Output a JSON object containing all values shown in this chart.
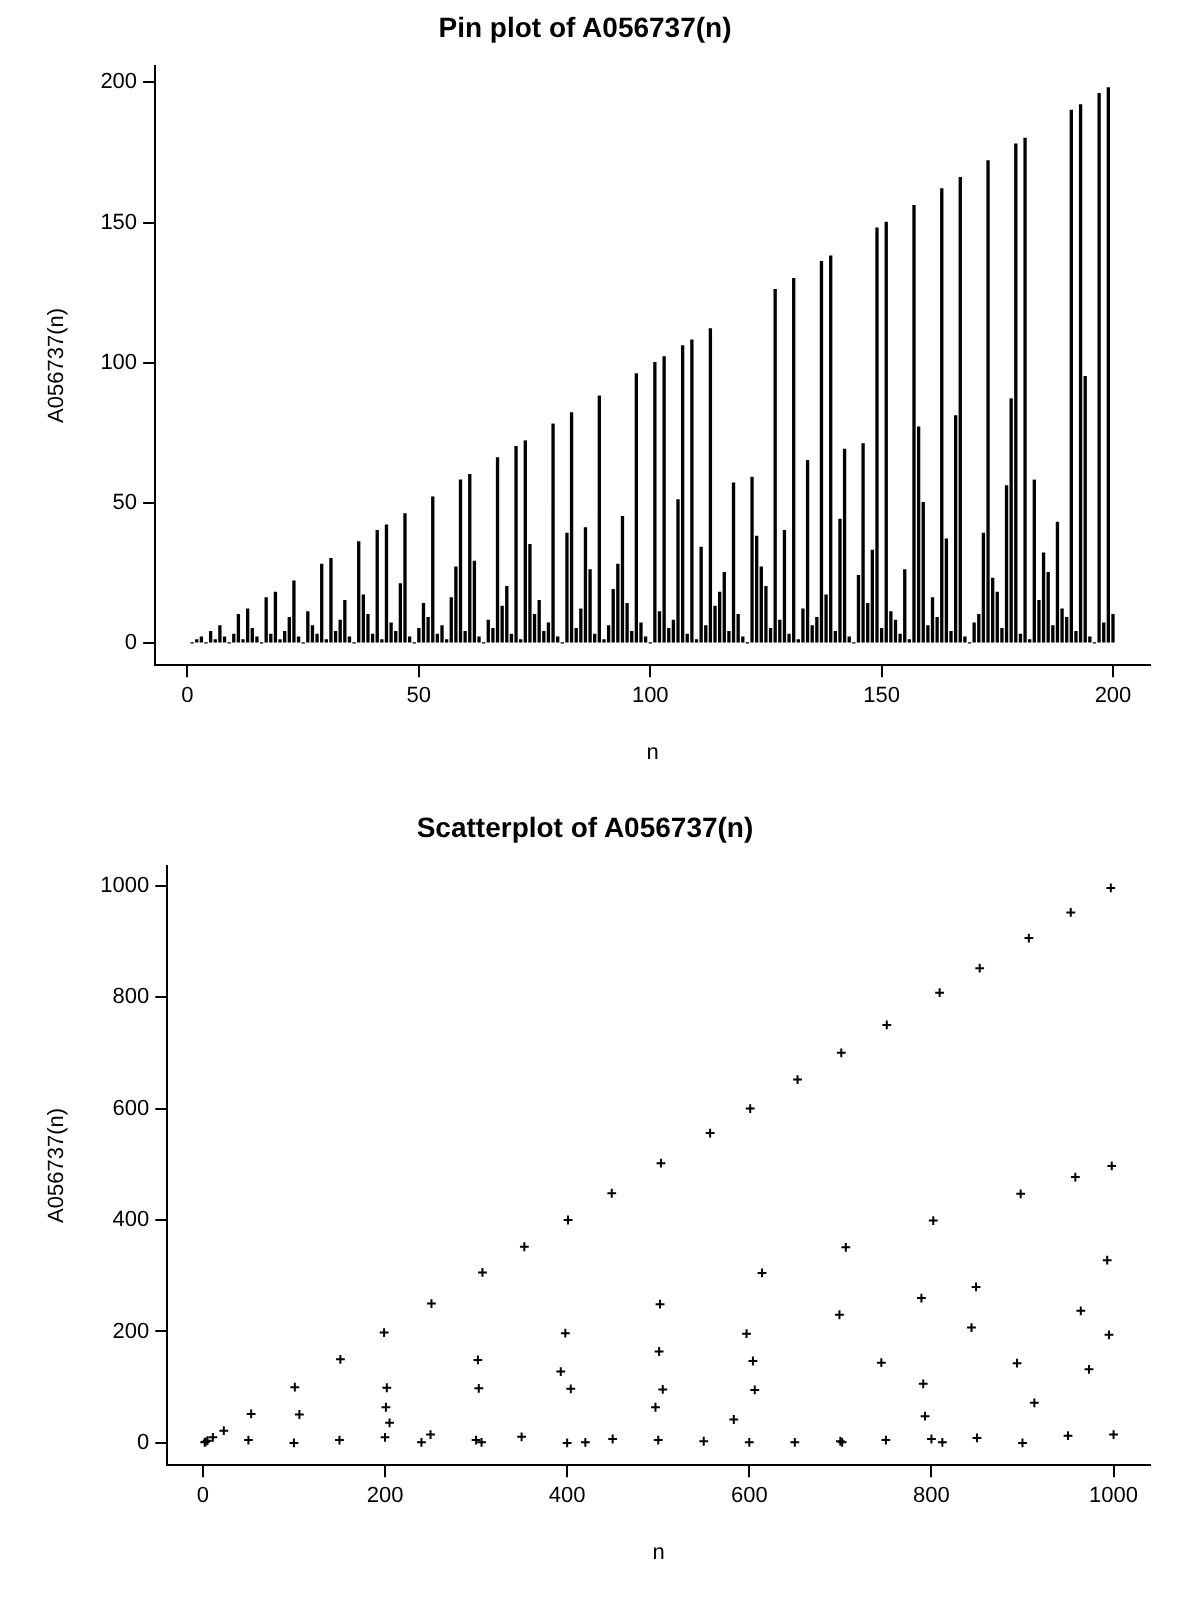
{
  "chart_data": [
    {
      "type": "bar",
      "title": "Pin plot of A056737(n)",
      "xlabel": "n",
      "ylabel": "A056737(n)",
      "xlim": [
        -7,
        208
      ],
      "xticks": [
        0,
        50,
        100,
        150,
        200
      ],
      "ylim": [
        -8,
        206
      ],
      "yticks": [
        0,
        50,
        100,
        150,
        200
      ],
      "grid": false,
      "legend": false,
      "x": [
        1,
        2,
        3,
        4,
        5,
        6,
        7,
        8,
        9,
        10,
        11,
        12,
        13,
        14,
        15,
        16,
        17,
        18,
        19,
        20,
        21,
        22,
        23,
        24,
        25,
        26,
        27,
        28,
        29,
        30,
        31,
        32,
        33,
        34,
        35,
        36,
        37,
        38,
        39,
        40,
        41,
        42,
        43,
        44,
        45,
        46,
        47,
        48,
        49,
        50,
        51,
        52,
        53,
        54,
        55,
        56,
        57,
        58,
        59,
        60,
        61,
        62,
        63,
        64,
        65,
        66,
        67,
        68,
        69,
        70,
        71,
        72,
        73,
        74,
        75,
        76,
        77,
        78,
        79,
        80,
        81,
        82,
        83,
        84,
        85,
        86,
        87,
        88,
        89,
        90,
        91,
        92,
        93,
        94,
        95,
        96,
        97,
        98,
        99,
        100,
        101,
        102,
        103,
        104,
        105,
        106,
        107,
        108,
        109,
        110,
        111,
        112,
        113,
        114,
        115,
        116,
        117,
        118,
        119,
        120,
        121,
        122,
        123,
        124,
        125,
        126,
        127,
        128,
        129,
        130,
        131,
        132,
        133,
        134,
        135,
        136,
        137,
        138,
        139,
        140,
        141,
        142,
        143,
        144,
        145,
        146,
        147,
        148,
        149,
        150,
        151,
        152,
        153,
        154,
        155,
        156,
        157,
        158,
        159,
        160,
        161,
        162,
        163,
        164,
        165,
        166,
        167,
        168,
        169,
        170,
        171,
        172,
        173,
        174,
        175,
        176,
        177,
        178,
        179,
        180,
        181,
        182,
        183,
        184,
        185,
        186,
        187,
        188,
        189,
        190,
        191,
        192,
        193,
        194,
        195,
        196,
        197,
        198,
        199,
        200
      ],
      "series": [
        {
          "color": "#000000",
          "values": [
            0,
            1,
            2,
            0,
            4,
            1,
            6,
            2,
            0,
            3,
            10,
            1,
            12,
            5,
            2,
            0,
            16,
            3,
            18,
            1,
            4,
            9,
            22,
            2,
            0,
            11,
            6,
            3,
            28,
            1,
            30,
            4,
            8,
            15,
            2,
            0,
            36,
            17,
            10,
            3,
            40,
            1,
            42,
            7,
            4,
            21,
            46,
            2,
            0,
            5,
            14,
            9,
            52,
            3,
            6,
            1,
            16,
            27,
            58,
            4,
            60,
            29,
            2,
            0,
            8,
            5,
            66,
            13,
            20,
            3,
            70,
            1,
            72,
            35,
            10,
            15,
            4,
            7,
            78,
            2,
            0,
            39,
            82,
            5,
            12,
            41,
            26,
            3,
            88,
            1,
            6,
            19,
            28,
            45,
            14,
            4,
            96,
            7,
            2,
            0,
            100,
            11,
            102,
            5,
            8,
            51,
            106,
            3,
            108,
            1,
            34,
            6,
            112,
            13,
            18,
            25,
            4,
            57,
            10,
            2,
            0,
            59,
            38,
            27,
            20,
            5,
            126,
            8,
            40,
            3,
            130,
            1,
            12,
            65,
            6,
            9,
            136,
            17,
            138,
            4,
            44,
            69,
            2,
            0,
            24,
            71,
            14,
            33,
            148,
            5,
            150,
            11,
            8,
            3,
            26,
            1,
            156,
            77,
            50,
            6,
            16,
            9,
            162,
            37,
            4,
            81,
            166,
            2,
            0,
            7,
            10,
            39,
            172,
            23,
            18,
            5,
            56,
            87,
            178,
            3,
            180,
            1,
            58,
            15,
            32,
            25,
            6,
            43,
            12,
            9,
            190,
            4,
            192,
            95,
            2,
            0,
            196,
            7,
            198,
            10
          ]
        }
      ]
    },
    {
      "type": "scatter",
      "title": "Scatterplot of A056737(n)",
      "xlabel": "n",
      "ylabel": "A056737(n)",
      "xlim": [
        -39,
        1040
      ],
      "xticks": [
        0,
        200,
        400,
        600,
        800,
        1000
      ],
      "ylim": [
        -40,
        1036
      ],
      "yticks": [
        0,
        200,
        400,
        600,
        800,
        1000
      ],
      "grid": false,
      "legend": false,
      "marker": "cross",
      "x": [
        2,
        3,
        5,
        11,
        23,
        50,
        53,
        100,
        101,
        106,
        150,
        151,
        199,
        200,
        201,
        202,
        205,
        240,
        250,
        251,
        300,
        302,
        303,
        306,
        307,
        350,
        353,
        393,
        398,
        400,
        401,
        404,
        420,
        449,
        450,
        497,
        500,
        501,
        502,
        503,
        505,
        550,
        557,
        583,
        597,
        600,
        601,
        604,
        606,
        614,
        650,
        653,
        699,
        700,
        701,
        702,
        706,
        745,
        750,
        751,
        789,
        791,
        793,
        800,
        802,
        809,
        812,
        844,
        849,
        850,
        853,
        894,
        898,
        900,
        907,
        913,
        950,
        953,
        958,
        964,
        973,
        993,
        995,
        997,
        998,
        1000
      ],
      "series": [
        {
          "color": "#000000",
          "values": [
            1,
            2,
            4,
            10,
            22,
            5,
            52,
            0,
            100,
            51,
            5,
            150,
            198,
            10,
            64,
            99,
            36,
            1,
            15,
            250,
            5,
            149,
            98,
            1,
            306,
            11,
            352,
            128,
            197,
            0,
            400,
            97,
            1,
            448,
            7,
            64,
            5,
            164,
            249,
            502,
            96,
            3,
            556,
            42,
            196,
            1,
            600,
            147,
            95,
            305,
            1,
            652,
            230,
            3,
            700,
            1,
            351,
            144,
            5,
            750,
            260,
            106,
            48,
            7,
            399,
            808,
            1,
            207,
            280,
            9,
            852,
            143,
            447,
            0,
            906,
            72,
            13,
            952,
            477,
            237,
            132,
            328,
            194,
            996,
            497,
            15
          ]
        }
      ]
    }
  ]
}
